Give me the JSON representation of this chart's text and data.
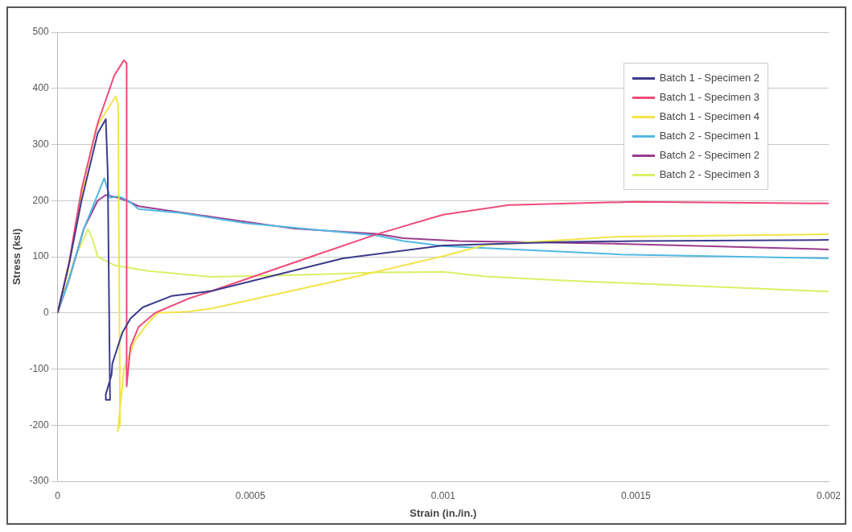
{
  "chart_data": {
    "type": "line",
    "xlabel": "Strain (in./in.)",
    "ylabel": "Stress (ksi)",
    "xlim": [
      0,
      0.002
    ],
    "xticks": [
      0,
      0.0005,
      0.001,
      0.0015,
      0.002
    ],
    "ylim": [
      -300,
      500
    ],
    "yticks": [
      -300,
      -200,
      -100,
      0,
      100,
      200,
      300,
      400,
      500
    ],
    "grid": "y",
    "legend": "top right",
    "marker": "none",
    "line_style": "solid",
    "series": [
      {
        "name": "Batch 1 - Specimen 2",
        "color": "#3d3a8c",
        "x": [
          0,
          3e-05,
          6.2e-05,
          0.000104,
          0.000125,
          0.00013,
          0.000136,
          0.000125,
          0.000125,
          0.00014,
          0.000142,
          0.000168,
          0.000189,
          0.000221,
          0.000295,
          0.0004,
          0.00074,
          0.001,
          0.0013,
          0.0015,
          0.002
        ],
        "values": [
          0,
          88,
          200,
          320,
          345,
          250,
          -155,
          -155,
          -145,
          -110,
          -90,
          -35,
          -10,
          10,
          30,
          39,
          97,
          120,
          126,
          128,
          130
        ]
      },
      {
        "name": "Batch 1 - Specimen 3",
        "color": "#f04a7a",
        "x": [
          0,
          3e-05,
          6.2e-05,
          0.000104,
          0.000147,
          0.000172,
          0.000179,
          0.000179,
          0.000189,
          0.00021,
          0.000253,
          0.000338,
          0.0004,
          0.000657,
          0.000827,
          0.001,
          0.00117,
          0.0015,
          0.002
        ],
        "values": [
          0,
          91,
          220,
          338,
          423,
          450,
          445,
          -131,
          -60,
          -25,
          0,
          25,
          39,
          100,
          140,
          175,
          192,
          198,
          195
        ]
      },
      {
        "name": "Batch 1 - Specimen 4",
        "color": "#f2e448",
        "x": [
          0,
          3e-05,
          6e-05,
          0.0001,
          0.000151,
          0.000157,
          0.000162,
          0.000155,
          0.000157,
          0.000172,
          0.0002,
          0.000232,
          0.00026,
          0.000338,
          0.0004,
          0.000757,
          0.001,
          0.00111,
          0.00146,
          0.002
        ],
        "values": [
          0,
          85,
          205,
          330,
          386,
          370,
          -200,
          -210,
          -205,
          -100,
          -50,
          -20,
          0,
          2,
          8,
          62,
          101,
          121,
          136,
          140
        ]
      },
      {
        "name": "Batch 2 - Specimen 1",
        "color": "#52b8e2",
        "x": [
          0,
          3e-05,
          6.8e-05,
          8.3e-05,
          0.000121,
          0.000136,
          0.000157,
          0.000183,
          0.00021,
          0.000317,
          0.000487,
          0.000827,
          0.000897,
          0.001,
          0.00146,
          0.002
        ],
        "values": [
          0,
          60,
          150,
          175,
          240,
          205,
          208,
          200,
          185,
          178,
          160,
          138,
          128,
          119,
          104,
          97
        ]
      },
      {
        "name": "Batch 2 - Specimen 2",
        "color": "#9b3c8e",
        "x": [
          0,
          3e-05,
          6.8e-05,
          0.000104,
          0.000125,
          0.000157,
          0.000179,
          0.00021,
          0.0004,
          0.000614,
          0.000827,
          0.000897,
          0.00104,
          0.00146,
          0.002
        ],
        "values": [
          0,
          60,
          150,
          200,
          210,
          205,
          200,
          190,
          171,
          150,
          141,
          133,
          128,
          123,
          113
        ]
      },
      {
        "name": "Batch 2 - Specimen 3",
        "color": "#dcef66",
        "x": [
          0,
          4.7e-05,
          7.9e-05,
          8.9e-05,
          0.000104,
          0.000147,
          0.000232,
          0.0004,
          0.000657,
          0.000827,
          0.001,
          0.00111,
          0.0013,
          0.002
        ],
        "values": [
          0,
          101,
          149,
          135,
          100,
          85,
          75,
          64,
          68,
          72,
          73,
          65,
          58,
          38
        ]
      }
    ]
  }
}
